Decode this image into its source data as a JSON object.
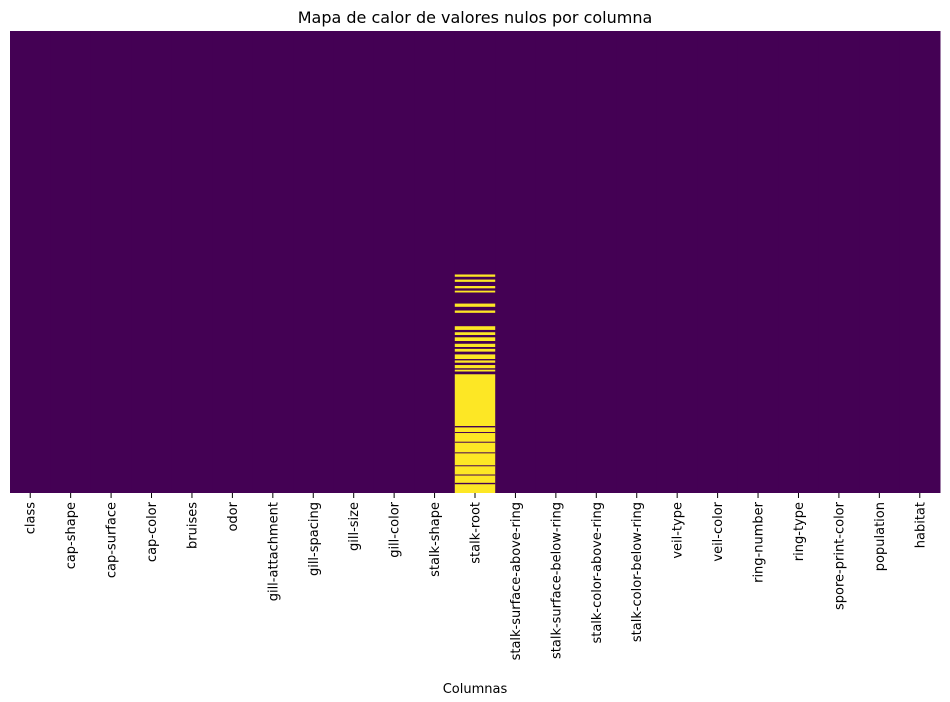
{
  "chart_data": {
    "type": "heatmap",
    "title": "Mapa de calor de valores nulos por columna",
    "xlabel": "Columnas",
    "ylabel": "",
    "y_ticks_shown": false,
    "colorbar_shown": false,
    "grid": false,
    "colormap": "viridis",
    "colors": {
      "not_null": "#440154",
      "null": "#fde725"
    },
    "columns": [
      "class",
      "cap-shape",
      "cap-surface",
      "cap-color",
      "bruises",
      "odor",
      "gill-attachment",
      "gill-spacing",
      "gill-size",
      "gill-color",
      "stalk-shape",
      "stalk-root",
      "stalk-surface-above-ring",
      "stalk-surface-below-ring",
      "stalk-color-above-ring",
      "stalk-color-below-ring",
      "veil-type",
      "veil-color",
      "ring-number",
      "ring-type",
      "spore-print-color",
      "population",
      "habitat"
    ],
    "row_range": [
      0,
      1
    ],
    "null_segments": [
      {
        "column": "stalk-root",
        "ranges": [
          [
            0.527,
            0.532
          ],
          [
            0.538,
            0.543
          ],
          [
            0.552,
            0.557
          ],
          [
            0.562,
            0.566
          ],
          [
            0.59,
            0.597
          ],
          [
            0.605,
            0.61
          ],
          [
            0.639,
            0.647
          ],
          [
            0.652,
            0.658
          ],
          [
            0.663,
            0.671
          ],
          [
            0.677,
            0.684
          ],
          [
            0.688,
            0.694
          ],
          [
            0.7,
            0.71
          ],
          [
            0.713,
            0.718
          ],
          [
            0.723,
            0.73
          ],
          [
            0.733,
            0.737
          ],
          [
            0.743,
            1.0
          ]
        ]
      }
    ],
    "not_null_bands": [
      {
        "column": "stalk-root",
        "ranges": [
          [
            0.855,
            0.858
          ],
          [
            0.868,
            0.87
          ],
          [
            0.889,
            0.891
          ],
          [
            0.912,
            0.914
          ],
          [
            0.94,
            0.942
          ],
          [
            0.96,
            0.962
          ],
          [
            0.978,
            0.981
          ]
        ]
      }
    ]
  }
}
